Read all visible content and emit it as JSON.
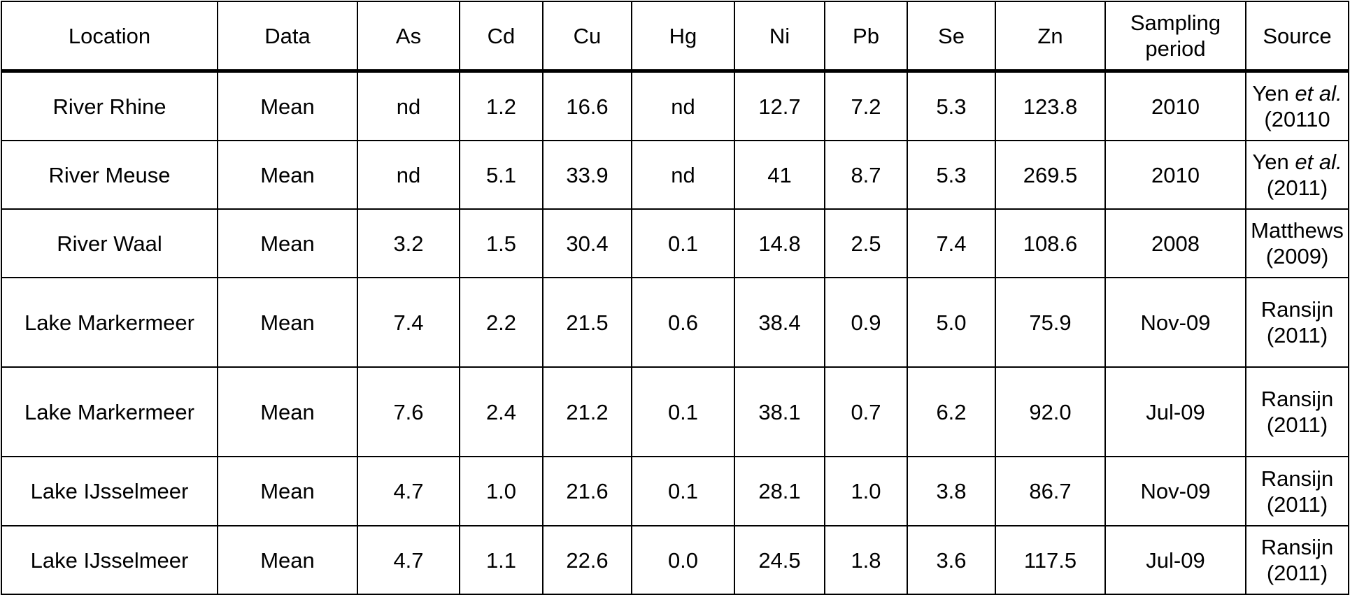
{
  "table": {
    "headers": [
      {
        "key": "location",
        "label": "Location"
      },
      {
        "key": "data",
        "label": "Data"
      },
      {
        "key": "as",
        "label": "As"
      },
      {
        "key": "cd",
        "label": "Cd"
      },
      {
        "key": "cu",
        "label": "Cu"
      },
      {
        "key": "hg",
        "label": "Hg"
      },
      {
        "key": "ni",
        "label": "Ni"
      },
      {
        "key": "pb",
        "label": "Pb"
      },
      {
        "key": "se",
        "label": "Se"
      },
      {
        "key": "zn",
        "label": "Zn"
      },
      {
        "key": "sampling_period",
        "label": "Sampling period"
      },
      {
        "key": "source",
        "label": "Source"
      }
    ],
    "rows": [
      {
        "location": "River Rhine",
        "data": "Mean",
        "as": "nd",
        "cd": "1.2",
        "cu": "16.6",
        "hg": "nd",
        "ni": "12.7",
        "pb": "7.2",
        "se": "5.3",
        "zn": "123.8",
        "sampling_period": "2010",
        "source_author": "Yen",
        "source_etal": "et al.",
        "source_year": "(20110"
      },
      {
        "location": "River Meuse",
        "data": "Mean",
        "as": "nd",
        "cd": "5.1",
        "cu": "33.9",
        "hg": "nd",
        "ni": "41",
        "pb": "8.7",
        "se": "5.3",
        "zn": "269.5",
        "sampling_period": "2010",
        "source_author": "Yen",
        "source_etal": "et al.",
        "source_year": "(2011)"
      },
      {
        "location": "River Waal",
        "data": "Mean",
        "as": "3.2",
        "cd": "1.5",
        "cu": "30.4",
        "hg": "0.1",
        "ni": "14.8",
        "pb": "2.5",
        "se": "7.4",
        "zn": "108.6",
        "sampling_period": "2008",
        "source_author": "Matthews",
        "source_etal": "",
        "source_year": "(2009)"
      },
      {
        "location": "Lake Markermeer",
        "data": "Mean",
        "as": "7.4",
        "cd": "2.2",
        "cu": "21.5",
        "hg": "0.6",
        "ni": "38.4",
        "pb": "0.9",
        "se": "5.0",
        "zn": "75.9",
        "sampling_period": "Nov-09",
        "source_author": "Ransijn",
        "source_etal": "",
        "source_year": "(2011)"
      },
      {
        "location": "Lake Markermeer",
        "data": "Mean",
        "as": "7.6",
        "cd": "2.4",
        "cu": "21.2",
        "hg": "0.1",
        "ni": "38.1",
        "pb": "0.7",
        "se": "6.2",
        "zn": "92.0",
        "sampling_period": "Jul-09",
        "source_author": "Ransijn",
        "source_etal": "",
        "source_year": "(2011)"
      },
      {
        "location": "Lake IJsselmeer",
        "data": "Mean",
        "as": "4.7",
        "cd": "1.0",
        "cu": "21.6",
        "hg": "0.1",
        "ni": "28.1",
        "pb": "1.0",
        "se": "3.8",
        "zn": "86.7",
        "sampling_period": "Nov-09",
        "source_author": "Ransijn",
        "source_etal": "",
        "source_year": "(2011)"
      },
      {
        "location": "Lake IJsselmeer",
        "data": "Mean",
        "as": "4.7",
        "cd": "1.1",
        "cu": "22.6",
        "hg": "0.0",
        "ni": "24.5",
        "pb": "1.8",
        "se": "3.6",
        "zn": "117.5",
        "sampling_period": "Jul-09",
        "source_author": "Ransijn",
        "source_etal": "",
        "source_year": "(2011)"
      }
    ]
  }
}
